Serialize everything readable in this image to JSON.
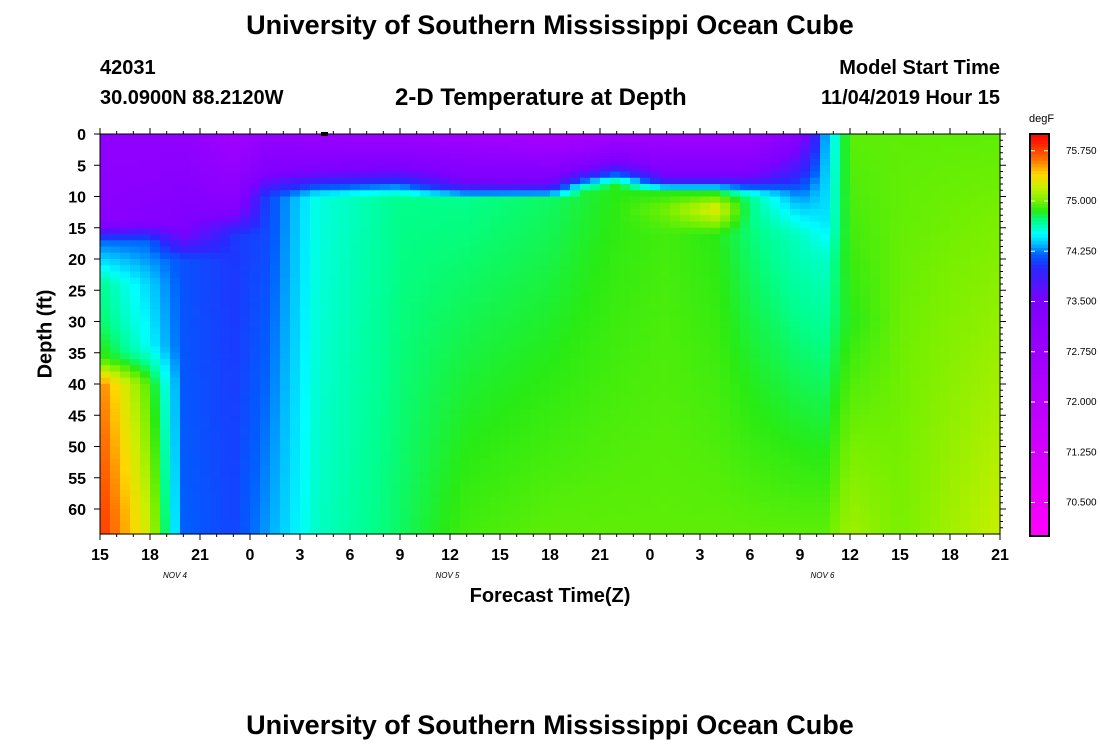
{
  "header": {
    "title": "University of Southern Mississippi Ocean Cube",
    "station_id": "42031",
    "location": "30.0900N 88.2120W",
    "subtitle": "2-D Temperature at Depth",
    "model_start_label": "Model Start Time",
    "model_start_value": "11/04/2019 Hour 15"
  },
  "footer": {
    "title": "University of Southern Mississippi Ocean Cube"
  },
  "chart_data": {
    "type": "heatmap",
    "xlabel": "Forecast Time(Z)",
    "ylabel": "Depth (ft)",
    "x_ticks": [
      "15",
      "18",
      "21",
      "0",
      "3",
      "6",
      "9",
      "12",
      "15",
      "18",
      "21",
      "0",
      "3",
      "6",
      "9",
      "12",
      "15",
      "18",
      "21"
    ],
    "date_labels": [
      {
        "label": "NOV 4",
        "tick_index": 1.5
      },
      {
        "label": "NOV 5",
        "tick_index": 6.95
      },
      {
        "label": "NOV 6",
        "tick_index": 14.45
      }
    ],
    "y_ticks": [
      0,
      5,
      10,
      15,
      20,
      25,
      30,
      35,
      40,
      45,
      50,
      55,
      60
    ],
    "ylim": [
      0,
      64
    ],
    "hours_range": [
      0,
      54
    ],
    "colorbar": {
      "unit": "degF",
      "ticks": [
        "75.750",
        "75.000",
        "74.250",
        "73.500",
        "72.750",
        "72.000",
        "71.250",
        "70.500"
      ],
      "range": [
        70.0,
        76.0
      ]
    },
    "temperature_profiles": [
      {
        "hour": 0,
        "depth": [
          0,
          14,
          17,
          24,
          30,
          36,
          40,
          62,
          64
        ],
        "temp": [
          73.0,
          73.2,
          74.2,
          74.7,
          74.75,
          74.9,
          75.6,
          75.8,
          75.8
        ]
      },
      {
        "hour": 3,
        "depth": [
          0,
          14,
          17,
          24,
          34,
          40,
          64
        ],
        "temp": [
          73.0,
          73.3,
          74.2,
          74.4,
          74.5,
          74.9,
          75.2
        ]
      },
      {
        "hour": 5,
        "depth": [
          0,
          16,
          20,
          64
        ],
        "temp": [
          73.0,
          73.5,
          74.15,
          74.2
        ]
      },
      {
        "hour": 8,
        "depth": [
          0,
          12,
          16,
          64
        ],
        "temp": [
          72.6,
          73.3,
          74.05,
          74.1
        ]
      },
      {
        "hour": 10,
        "depth": [
          0,
          6,
          10,
          64
        ],
        "temp": [
          72.9,
          73.4,
          74.1,
          74.3
        ]
      },
      {
        "hour": 13,
        "depth": [
          0,
          6,
          10,
          64
        ],
        "temp": [
          72.8,
          73.5,
          74.55,
          74.6
        ]
      },
      {
        "hour": 18,
        "depth": [
          0,
          6,
          10,
          64
        ],
        "temp": [
          72.7,
          73.6,
          74.7,
          74.75
        ]
      },
      {
        "hour": 22,
        "depth": [
          0,
          8,
          10.5,
          64
        ],
        "temp": [
          72.6,
          73.6,
          74.7,
          74.9
        ]
      },
      {
        "hour": 27,
        "depth": [
          0,
          8,
          10.5,
          64
        ],
        "temp": [
          72.4,
          73.6,
          74.75,
          74.95
        ]
      },
      {
        "hour": 29,
        "depth": [
          0,
          6,
          9,
          64
        ],
        "temp": [
          72.4,
          73.6,
          74.8,
          74.95
        ]
      },
      {
        "hour": 31,
        "depth": [
          0,
          5,
          8,
          64
        ],
        "temp": [
          72.6,
          73.6,
          74.85,
          74.95
        ]
      },
      {
        "hour": 34,
        "depth": [
          0,
          7,
          9.5,
          12,
          16,
          64
        ],
        "temp": [
          72.6,
          73.6,
          74.85,
          75.0,
          74.9,
          74.95
        ]
      },
      {
        "hour": 37,
        "depth": [
          0,
          7,
          9.5,
          12,
          16,
          64
        ],
        "temp": [
          72.6,
          73.6,
          74.85,
          75.3,
          74.85,
          74.95
        ]
      },
      {
        "hour": 39,
        "depth": [
          0,
          7,
          10,
          64
        ],
        "temp": [
          72.6,
          73.6,
          74.7,
          74.95
        ]
      },
      {
        "hour": 42,
        "depth": [
          0,
          5,
          9,
          12,
          16,
          64
        ],
        "temp": [
          73.3,
          73.8,
          74.2,
          74.4,
          74.6,
          74.95
        ]
      },
      {
        "hour": 43.5,
        "depth": [
          0,
          8,
          14,
          20,
          64
        ],
        "temp": [
          74.3,
          74.4,
          74.45,
          74.6,
          74.95
        ]
      },
      {
        "hour": 45,
        "depth": [
          0,
          30,
          64
        ],
        "temp": [
          74.95,
          74.85,
          75.1
        ]
      },
      {
        "hour": 48,
        "depth": [
          0,
          64
        ],
        "temp": [
          74.95,
          75.0
        ]
      },
      {
        "hour": 54,
        "depth": [
          0,
          64
        ],
        "temp": [
          74.95,
          75.2
        ]
      }
    ]
  }
}
